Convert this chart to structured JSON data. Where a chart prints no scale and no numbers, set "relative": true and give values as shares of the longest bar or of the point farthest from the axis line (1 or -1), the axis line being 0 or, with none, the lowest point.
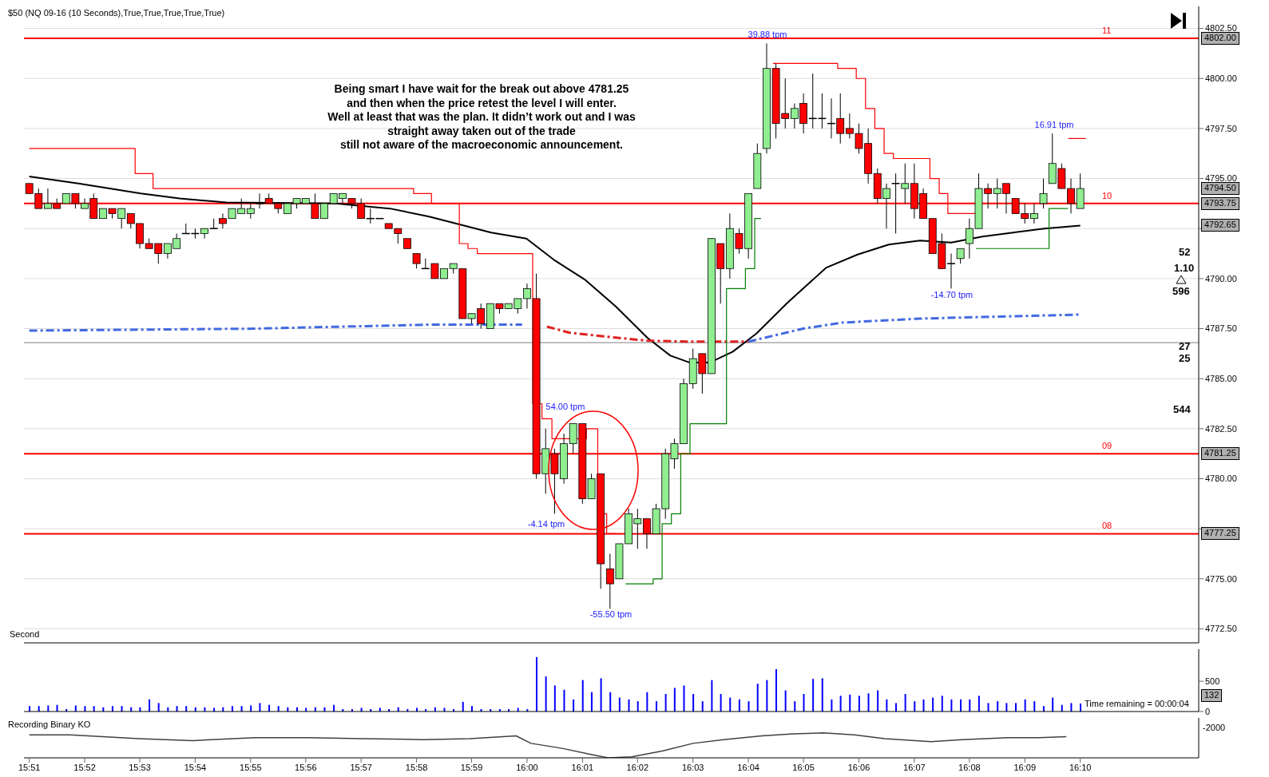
{
  "chart_data": [
    {
      "type": "candlestick",
      "title": "$50  (NQ 09-16 (10 Seconds),True,True,True,True,True)",
      "x": [
        15.85,
        15.8528,
        15.8556,
        15.8583,
        15.8611,
        15.8639,
        15.8667,
        15.8694,
        15.8722,
        15.875,
        15.8778,
        15.8806,
        15.8833,
        15.8861,
        15.8889,
        15.8917,
        15.8944,
        15.8972,
        15.9,
        15.9028,
        15.9056,
        15.9083,
        15.9111,
        15.9139,
        15.9167,
        15.9194,
        15.9222,
        15.925,
        15.9278,
        15.9306,
        15.9333,
        15.9361,
        15.9389,
        15.9417,
        15.9444,
        15.9472,
        15.95,
        15.9528,
        15.9556,
        15.9583,
        15.9611,
        15.9639,
        15.9667,
        15.9694,
        15.9722,
        15.975,
        15.9778,
        15.9806,
        15.9833,
        15.9861,
        15.9889,
        15.9917,
        15.9944,
        15.9972,
        16.0,
        16.0028,
        16.0056,
        16.0083,
        16.0111,
        16.0139,
        16.0167,
        16.0194,
        16.0222,
        16.025,
        16.0278,
        16.0306,
        16.0333,
        16.0361,
        16.0389,
        16.0417,
        16.0444,
        16.0472,
        16.05,
        16.0528,
        16.0556,
        16.0583,
        16.0611,
        16.0639,
        16.0667,
        16.0694,
        16.0722,
        16.075,
        16.0778,
        16.0806,
        16.0833,
        16.0861,
        16.0889,
        16.0917,
        16.0944,
        16.0972,
        16.1,
        16.1028,
        16.1056,
        16.1083,
        16.1111,
        16.1139,
        16.1167,
        16.1194,
        16.1222,
        16.125,
        16.1278,
        16.1306,
        16.1333,
        16.1361,
        16.1389,
        16.1417,
        16.1444,
        16.1472,
        16.15,
        16.1528,
        16.1556,
        16.1583,
        16.1611,
        16.1639,
        16.1667
      ],
      "ohlc": [
        [
          4794.75,
          4794.75,
          4794.25,
          4794.25
        ],
        [
          4794.25,
          4794.5,
          4793.5,
          4793.5
        ],
        [
          4793.5,
          4794.5,
          4793.5,
          4793.75
        ],
        [
          4793.75,
          4794,
          4793.5,
          4793.5
        ],
        [
          4793.75,
          4794.25,
          4793.75,
          4794.25
        ],
        [
          4794.25,
          4794.25,
          4793.5,
          4793.75
        ],
        [
          4793.5,
          4794,
          4793.5,
          4793.75
        ],
        [
          4794,
          4794.25,
          4793,
          4793
        ],
        [
          4793,
          4793.5,
          4793,
          4793.5
        ],
        [
          4793.5,
          4793.5,
          4793,
          4793.25
        ],
        [
          4793,
          4793.5,
          4792.5,
          4793.5
        ],
        [
          4793.25,
          4793.25,
          4792.5,
          4792.75
        ],
        [
          4792.75,
          4792.75,
          4791.5,
          4791.75
        ],
        [
          4791.75,
          4792,
          4791.5,
          4791.5
        ],
        [
          4791.75,
          4791.75,
          4790.75,
          4791.25
        ],
        [
          4791.25,
          4791.75,
          4791,
          4791.75
        ],
        [
          4791.5,
          4792.25,
          4791.5,
          4792
        ],
        [
          4792.25,
          4792.75,
          4792.25,
          4792.25
        ],
        [
          4792.25,
          4792.5,
          4792,
          4792.25
        ],
        [
          4792.25,
          4792.5,
          4792,
          4792.5
        ],
        [
          4792.5,
          4793,
          4792.5,
          4792.5
        ],
        [
          4793,
          4793.25,
          4792.5,
          4792.75
        ],
        [
          4793,
          4793.5,
          4793,
          4793.5
        ],
        [
          4793.25,
          4794,
          4793.25,
          4793.5
        ],
        [
          4793.25,
          4793.75,
          4793,
          4793.5
        ],
        [
          4793.75,
          4794.25,
          4793.5,
          4793.75
        ],
        [
          4794,
          4794.25,
          4793.75,
          4793.75
        ],
        [
          4793.75,
          4793.75,
          4793.25,
          4793.5
        ],
        [
          4793.25,
          4793.75,
          4793.25,
          4793.75
        ],
        [
          4793.75,
          4794,
          4793.5,
          4794
        ],
        [
          4793.75,
          4794,
          4793.75,
          4794
        ],
        [
          4793.75,
          4794.25,
          4793,
          4793
        ],
        [
          4793,
          4793.75,
          4793,
          4793.75
        ],
        [
          4793.75,
          4794.25,
          4793.75,
          4794.25
        ],
        [
          4794,
          4794.25,
          4793.75,
          4794.25
        ],
        [
          4794,
          4794,
          4793.5,
          4793.75
        ],
        [
          4793.75,
          4794,
          4793,
          4793
        ],
        [
          4793,
          4793.5,
          4792.75,
          4793
        ],
        [
          4793,
          4793,
          4793,
          4793
        ],
        [
          4792.75,
          4792.75,
          4792.5,
          4792.5
        ],
        [
          4792.5,
          4792.5,
          4791.75,
          4792.25
        ],
        [
          4792,
          4792,
          4791.5,
          4791.5
        ],
        [
          4791.25,
          4791.25,
          4790.5,
          4790.75
        ],
        [
          4790.5,
          4791,
          4790.5,
          4790.5
        ],
        [
          4790.75,
          4790.75,
          4790,
          4790
        ],
        [
          4790,
          4790.5,
          4790,
          4790.5
        ],
        [
          4790.5,
          4790.75,
          4790.25,
          4790.75
        ],
        [
          4790.5,
          4790.5,
          4788,
          4788
        ],
        [
          4788,
          4788.25,
          4787.75,
          4788.25
        ],
        [
          4788.5,
          4788.75,
          4787.5,
          4787.75
        ],
        [
          4787.5,
          4788.75,
          4787.5,
          4788.75
        ],
        [
          4788.75,
          4788.75,
          4788.25,
          4788.5
        ],
        [
          4788.5,
          4788.75,
          4788.5,
          4788.75
        ],
        [
          4788.5,
          4789,
          4788.25,
          4789
        ],
        [
          4789,
          4789.75,
          4788.5,
          4789.5
        ],
        [
          4789,
          4790.25,
          4780,
          4780.25
        ],
        [
          4780.25,
          4782.5,
          4779.25,
          4781.5
        ],
        [
          4781.25,
          4781.5,
          4778.25,
          4780.25
        ],
        [
          4780,
          4782.25,
          4779.75,
          4781.75
        ],
        [
          4781.75,
          4782.75,
          4781.25,
          4782.75
        ],
        [
          4782.75,
          4782.75,
          4778.75,
          4779
        ],
        [
          4779,
          4780.25,
          4779,
          4780
        ],
        [
          4780.25,
          4780.25,
          4774.5,
          4775.75
        ],
        [
          4775.5,
          4776.25,
          4773.5,
          4774.75
        ],
        [
          4775,
          4776.75,
          4775,
          4776.75
        ],
        [
          4776.75,
          4778.5,
          4776.75,
          4778.25
        ],
        [
          4777.75,
          4778.5,
          4776.5,
          4778
        ],
        [
          4778,
          4778,
          4776.5,
          4777.25
        ],
        [
          4777.25,
          4778.75,
          4777.25,
          4778.5
        ],
        [
          4778.5,
          4781.5,
          4778,
          4781.25
        ],
        [
          4781,
          4782,
          4780.5,
          4781.75
        ],
        [
          4781.75,
          4785,
          4781.75,
          4784.75
        ],
        [
          4784.75,
          4786.5,
          4784.5,
          4786
        ],
        [
          4786.25,
          4786.25,
          4784.25,
          4785.25
        ],
        [
          4785.25,
          4792,
          4785.25,
          4792
        ],
        [
          4791.75,
          4791.75,
          4788.75,
          4790.5
        ],
        [
          4790.5,
          4793.25,
          4790,
          4792.5
        ],
        [
          4792.25,
          4792.5,
          4791.25,
          4791.5
        ],
        [
          4791.5,
          4794.25,
          4791,
          4794.25
        ],
        [
          4794.5,
          4796.75,
          4794.5,
          4796.25
        ],
        [
          4796.5,
          4801.75,
          4796.25,
          4800.5
        ],
        [
          4800.5,
          4800.75,
          4797,
          4797.75
        ],
        [
          4798.25,
          4800,
          4797.5,
          4798
        ],
        [
          4798,
          4798.75,
          4797.5,
          4798.5
        ],
        [
          4798.75,
          4799.25,
          4797.25,
          4797.75
        ],
        [
          4798,
          4800.25,
          4797.5,
          4798
        ],
        [
          4798,
          4799.25,
          4797.5,
          4798
        ],
        [
          4797.75,
          4799,
          4797,
          4797.75
        ],
        [
          4798,
          4799.25,
          4796.75,
          4797.25
        ],
        [
          4797.5,
          4798.25,
          4797,
          4797.25
        ],
        [
          4797.25,
          4797.75,
          4796.25,
          4796.5
        ],
        [
          4796.75,
          4797.5,
          4794.75,
          4795.25
        ],
        [
          4795.25,
          4795.5,
          4793.75,
          4794
        ],
        [
          4794,
          4794.75,
          4792.5,
          4794.5
        ],
        [
          4794.75,
          4795.25,
          4792.25,
          4794.75
        ],
        [
          4794.5,
          4795.75,
          4793.75,
          4794.75
        ],
        [
          4794.75,
          4795.75,
          4793,
          4793.5
        ],
        [
          4794.25,
          4794.5,
          4793,
          4793
        ],
        [
          4793,
          4793,
          4791.25,
          4791.25
        ],
        [
          4791.75,
          4792.25,
          4790.5,
          4790.5
        ],
        [
          4790.75,
          4791.25,
          4789.5,
          4790.75
        ],
        [
          4791,
          4791.5,
          4790.75,
          4791.5
        ],
        [
          4791.75,
          4793,
          4791,
          4792.5
        ],
        [
          4792.5,
          4795.25,
          4792.5,
          4794.5
        ],
        [
          4794.5,
          4794.75,
          4793.5,
          4794.25
        ],
        [
          4794.25,
          4795,
          4793.5,
          4794.5
        ],
        [
          4794.75,
          4794.75,
          4793.25,
          4794.25
        ],
        [
          4794,
          4794,
          4793.25,
          4793.25
        ],
        [
          4793.25,
          4793.75,
          4792.75,
          4793
        ],
        [
          4793,
          4793.75,
          4792.75,
          4793.25
        ],
        [
          4793.75,
          4795,
          4793.5,
          4794.25
        ],
        [
          4794.75,
          4797.25,
          4794.75,
          4795.75
        ],
        [
          4795.5,
          4795.75,
          4794.5,
          4794.5
        ],
        [
          4794.5,
          4795,
          4793.25,
          4793.75
        ],
        [
          4793.5,
          4795.25,
          4793.5,
          4794.5
        ]
      ],
      "colors": [
        "#ff0000",
        "#ff0000",
        "#90ee90",
        "#ff0000",
        "#90ee90",
        "#ff0000",
        "#90ee90",
        "#ff0000",
        "#90ee90",
        "#ff0000",
        "#90ee90",
        "#ff0000",
        "#ff0000",
        "#ff0000",
        "#ff0000",
        "#90ee90",
        "#90ee90",
        "#000000",
        "#000000",
        "#90ee90",
        "#000000",
        "#ff0000",
        "#90ee90",
        "#90ee90",
        "#90ee90",
        "#000000",
        "#ff0000",
        "#ff0000",
        "#90ee90",
        "#90ee90",
        "#90ee90",
        "#ff0000",
        "#90ee90",
        "#90ee90",
        "#90ee90",
        "#ff0000",
        "#ff0000",
        "#000000",
        "#000000",
        "#ff0000",
        "#ff0000",
        "#ff0000",
        "#ff0000",
        "#000000",
        "#ff0000",
        "#90ee90",
        "#90ee90",
        "#ff0000",
        "#90ee90",
        "#ff0000",
        "#90ee90",
        "#ff0000",
        "#90ee90",
        "#90ee90",
        "#90ee90",
        "#ff0000",
        "#90ee90",
        "#ff0000",
        "#90ee90",
        "#90ee90",
        "#ff0000",
        "#90ee90",
        "#ff0000",
        "#ff0000",
        "#90ee90",
        "#90ee90",
        "#90ee90",
        "#ff0000",
        "#90ee90",
        "#90ee90",
        "#90ee90",
        "#90ee90",
        "#90ee90",
        "#ff0000",
        "#90ee90",
        "#ff0000",
        "#90ee90",
        "#ff0000",
        "#90ee90",
        "#90ee90",
        "#90ee90",
        "#ff0000",
        "#ff0000",
        "#90ee90",
        "#ff0000",
        "#000000",
        "#000000",
        "#000000",
        "#ff0000",
        "#ff0000",
        "#ff0000",
        "#ff0000",
        "#ff0000",
        "#90ee90",
        "#000000",
        "#90ee90",
        "#ff0000",
        "#ff0000",
        "#ff0000",
        "#ff0000",
        "#000000",
        "#90ee90",
        "#90ee90",
        "#90ee90",
        "#ff0000",
        "#90ee90",
        "#ff0000",
        "#ff0000",
        "#ff0000",
        "#90ee90",
        "#90ee90",
        "#90ee90",
        "#ff0000",
        "#ff0000",
        "#90ee90"
      ],
      "series": [
        {
          "type": "line",
          "color": "#000000",
          "x": [
            15.85,
            15.8648,
            15.8836,
            15.8953,
            15.9094,
            15.9423,
            15.9587,
            15.9705,
            15.9787,
            15.9892,
            15.9998,
            16.008,
            16.0174,
            16.0268,
            16.0362,
            16.0432,
            16.0491,
            16.055,
            16.062,
            16.0691,
            16.0785,
            16.0902,
            16.0996,
            16.109,
            16.1184,
            16.1278,
            16.1372,
            16.1465,
            16.1559,
            16.1667
          ],
          "values": [
            4795.1,
            4794.75,
            4794.25,
            4794.0,
            4793.8,
            4793.75,
            4793.5,
            4793.1,
            4792.75,
            4792.3,
            4792.0,
            4790.95,
            4789.95,
            4788.6,
            4787.05,
            4786.15,
            4785.8,
            4785.8,
            4786.35,
            4787.25,
            4788.8,
            4790.55,
            4791.2,
            4791.7,
            4791.9,
            4791.8,
            4792.1,
            4792.3,
            4792.5,
            4792.65
          ]
        },
        {
          "type": "line",
          "color": "#4169e1",
          "line_style": "dashed",
          "x": [
            15.85,
            15.9188,
            15.9705,
            15.9985
          ],
          "values": [
            4787.4,
            4787.5,
            4787.7,
            4787.7
          ]
        },
        {
          "type": "line",
          "color": "#e02020",
          "line_style": "dashed",
          "x": [
            16.006,
            16.0127,
            16.0268,
            16.0362,
            16.0479,
            16.0667
          ],
          "values": [
            4787.6,
            4787.3,
            4787.05,
            4786.9,
            4786.85,
            4786.85
          ]
        },
        {
          "type": "line",
          "color": "#4169e1",
          "line_style": "dashed",
          "x": [
            16.0667,
            16.0832,
            16.0949,
            16.1184,
            16.1419,
            16.1667
          ],
          "values": [
            4786.85,
            4787.5,
            4787.8,
            4788.0,
            4788.1,
            4788.2
          ]
        },
        {
          "type": "step",
          "color": "#ff0000",
          "x": [
            15.85,
            15.8819,
            15.8873,
            15.9658,
            15.9712,
            15.9796,
            15.9822,
            15.985,
            16.0017,
            16.0045,
            16.0075,
            16.0179,
            16.0213,
            16.024,
            16.0268
          ],
          "values": [
            4796.5,
            4795.25,
            4794.5,
            4794.25,
            4793.75,
            4791.75,
            4791.5,
            4791.25,
            4783.75,
            4783.0,
            4782.0,
            4782.5,
            4778.25,
            4777.25,
            4777.25
          ]
        },
        {
          "type": "step",
          "color": "#ff0000",
          "x": [
            16.0741,
            16.0936,
            16.0992,
            16.102,
            16.1048,
            16.1076,
            16.1104,
            16.1214,
            16.1242,
            16.1268,
            16.1353
          ],
          "values": [
            4800.75,
            4800.5,
            4800.0,
            4798.5,
            4797.5,
            4796.25,
            4796.0,
            4795.0,
            4794.25,
            4793.25,
            4793.25
          ]
        },
        {
          "type": "step",
          "color": "#ff0000",
          "x": [
            16.1631,
            16.1684
          ],
          "values": [
            4797.0,
            4797.0
          ]
        },
        {
          "type": "step",
          "color": "#008000",
          "x": [
            16.0297,
            16.038,
            16.0407,
            16.0435,
            16.0463,
            16.0491,
            16.0601,
            16.0658,
            16.0686,
            16.0705
          ],
          "values": [
            4774.75,
            4775.0,
            4777.75,
            4778.25,
            4781.25,
            4782.75,
            4789.5,
            4790.5,
            4793.0,
            4793.0
          ]
        },
        {
          "type": "step",
          "color": "#008000",
          "x": [
            16.1353,
            16.1573,
            16.163
          ],
          "values": [
            4791.5,
            4793.5,
            4793.5
          ]
        }
      ],
      "xlim": [
        15.8484,
        16.2024
      ],
      "xticks": [
        {
          "value": 15.85,
          "label": null
        },
        {
          "value": 15.8667,
          "label": null
        },
        {
          "value": 15.8833,
          "label": null
        },
        {
          "value": 15.9,
          "label": null
        },
        {
          "value": 15.9167,
          "label": null
        },
        {
          "value": 15.9333,
          "label": null
        },
        {
          "value": 15.95,
          "label": null
        },
        {
          "value": 15.9667,
          "label": null
        },
        {
          "value": 15.9833,
          "label": null
        },
        {
          "value": 16.0,
          "label": null
        },
        {
          "value": 16.0167,
          "label": null
        },
        {
          "value": 16.0333,
          "label": null
        },
        {
          "value": 16.05,
          "label": null
        },
        {
          "value": 16.0667,
          "label": null
        },
        {
          "value": 16.0833,
          "label": null
        },
        {
          "value": 16.1,
          "label": null
        },
        {
          "value": 16.1167,
          "label": null
        },
        {
          "value": 16.1333,
          "label": null
        },
        {
          "value": 16.15,
          "label": null
        },
        {
          "value": 16.1667,
          "label": null
        }
      ],
      "ylim": [
        4771.8,
        4803.6
      ],
      "yticks": [
        {
          "value": 4772.5,
          "label": "4772.50"
        },
        {
          "value": 4775,
          "label": "4775.00"
        },
        {
          "value": 4777.5,
          "label": null
        },
        {
          "value": 4780,
          "label": "4780.00"
        },
        {
          "value": 4782.5,
          "label": "4782.50"
        },
        {
          "value": 4785,
          "label": "4785.00"
        },
        {
          "value": 4787.5,
          "label": "4787.50"
        },
        {
          "value": 4790,
          "label": "4790.00"
        },
        {
          "value": 4792.5,
          "label": null
        },
        {
          "value": 4795,
          "label": "4795.00"
        },
        {
          "value": 4797.5,
          "label": "4797.50"
        },
        {
          "value": 4800,
          "label": "4800.00"
        },
        {
          "value": 4802.5,
          "label": "4802.50"
        }
      ],
      "grid": true,
      "tick_labels": "y",
      "ref_lines": [
        {
          "axis": "y",
          "value": 4802,
          "color": "#ff0000"
        },
        {
          "axis": "y",
          "value": 4793.75,
          "color": "#ff0000"
        },
        {
          "axis": "y",
          "value": 4781.25,
          "color": "#ff0000"
        },
        {
          "axis": "y",
          "value": 4777.25,
          "color": "#ff0000"
        },
        {
          "axis": "y",
          "value": 4786.8,
          "color": "#808080"
        }
      ],
      "annotations": [
        "Being smart I have wait for the break out above 4781.25\nand then when the price retest the level I will enter.\nWell at least that was the plan. It didn’t work out and I was\nstraight away taken out of the trade\nstill not aware of the macroeconomic announcement.",
        "39.88 tpm",
        "54.00 tpm",
        "-4.14 tpm",
        "-55.50 tpm",
        "16.91 tpm",
        "-14.70 tpm",
        "4802.00",
        "4794.50",
        "4793.75",
        "4792.65",
        "4781.25",
        "4777.25",
        "11",
        "10",
        "09",
        "08",
        "Second",
        "52",
        "1.10",
        "596",
        "27",
        "25",
        "544"
      ]
    },
    {
      "type": "bar",
      "color": "#0000ff",
      "x": [
        15.85,
        15.8528,
        15.8556,
        15.8583,
        15.8611,
        15.8639,
        15.8667,
        15.8694,
        15.8722,
        15.875,
        15.8778,
        15.8806,
        15.8833,
        15.8861,
        15.8889,
        15.8917,
        15.8944,
        15.8972,
        15.9,
        15.9028,
        15.9056,
        15.9083,
        15.9111,
        15.9139,
        15.9167,
        15.9194,
        15.9222,
        15.925,
        15.9278,
        15.9306,
        15.9333,
        15.9361,
        15.9389,
        15.9417,
        15.9444,
        15.9472,
        15.95,
        15.9528,
        15.9556,
        15.9583,
        15.9611,
        15.9639,
        15.9667,
        15.9694,
        15.9722,
        15.975,
        15.9778,
        15.9806,
        15.9833,
        15.9861,
        15.9889,
        15.9917,
        15.9944,
        15.9972,
        16.0,
        16.0028,
        16.0056,
        16.0083,
        16.0111,
        16.0139,
        16.0167,
        16.0194,
        16.0222,
        16.025,
        16.0278,
        16.0306,
        16.0333,
        16.0361,
        16.0389,
        16.0417,
        16.0444,
        16.0472,
        16.05,
        16.0528,
        16.0556,
        16.0583,
        16.0611,
        16.0639,
        16.0667,
        16.0694,
        16.0722,
        16.075,
        16.0778,
        16.0806,
        16.0833,
        16.0861,
        16.0889,
        16.0917,
        16.0944,
        16.0972,
        16.1,
        16.1028,
        16.1056,
        16.1083,
        16.1111,
        16.1139,
        16.1167,
        16.1194,
        16.1222,
        16.125,
        16.1278,
        16.1306,
        16.1333,
        16.1361,
        16.1389,
        16.1417,
        16.1444,
        16.1472,
        16.15,
        16.1528,
        16.1556,
        16.1583,
        16.1611,
        16.1639,
        16.1667
      ],
      "values": [
        90,
        90,
        100,
        110,
        40,
        100,
        90,
        90,
        70,
        90,
        90,
        70,
        70,
        200,
        140,
        70,
        90,
        90,
        70,
        70,
        60,
        70,
        90,
        90,
        100,
        140,
        110,
        90,
        70,
        70,
        60,
        70,
        70,
        110,
        40,
        40,
        60,
        40,
        60,
        40,
        70,
        40,
        60,
        40,
        70,
        60,
        40,
        160,
        90,
        40,
        40,
        40,
        40,
        60,
        40,
        900,
        580,
        430,
        360,
        200,
        520,
        320,
        550,
        320,
        230,
        200,
        170,
        320,
        170,
        290,
        390,
        430,
        290,
        170,
        520,
        290,
        230,
        200,
        170,
        460,
        520,
        700,
        350,
        170,
        290,
        540,
        550,
        200,
        260,
        280,
        260,
        300,
        350,
        200,
        140,
        290,
        170,
        200,
        230,
        260,
        200,
        200,
        200,
        260,
        140,
        170,
        140,
        140,
        200,
        170,
        90,
        230,
        110,
        140,
        132
      ],
      "xlim": [
        15.8484,
        16.2024
      ],
      "ylim": [
        0,
        1030
      ],
      "yticks": [
        0,
        500
      ],
      "tick_labels": "y",
      "annotations": [
        "Time remaining = 00:00:04",
        "132"
      ]
    },
    {
      "type": "line",
      "title": "Recording Binary KO",
      "relative": true,
      "color": "#404040",
      "x": [
        15.85,
        15.8623,
        15.8831,
        15.8993,
        15.9179,
        15.934,
        15.9503,
        15.9688,
        15.9827,
        15.9967,
        16.0012,
        16.0106,
        16.0198,
        16.0244,
        16.0315,
        16.0407,
        16.05,
        16.0592,
        16.0707,
        16.0801,
        16.0893,
        16.0987,
        16.1078,
        16.1217,
        16.1311,
        16.1449,
        16.1543,
        16.1625
      ],
      "values": [
        0.92,
        0.92,
        0.77,
        0.69,
        0.81,
        0.81,
        0.77,
        0.73,
        0.77,
        0.88,
        0.58,
        0.38,
        0.12,
        0,
        0.04,
        0.27,
        0.58,
        0.73,
        0.88,
        0.96,
        1,
        0.92,
        0.77,
        0.65,
        0.73,
        0.81,
        0.81,
        0.85
      ],
      "xlim": [
        15.8484,
        16.2024
      ],
      "xticks": [
        {
          "value": 15.85,
          "label": "15:51"
        },
        {
          "value": 15.8667,
          "label": "15:52"
        },
        {
          "value": 15.8833,
          "label": "15:53"
        },
        {
          "value": 15.9,
          "label": "15:54"
        },
        {
          "value": 15.9167,
          "label": "15:55"
        },
        {
          "value": 15.9333,
          "label": "15:56"
        },
        {
          "value": 15.95,
          "label": "15:57"
        },
        {
          "value": 15.9667,
          "label": "15:58"
        },
        {
          "value": 15.9833,
          "label": "15:59"
        },
        {
          "value": 16.0,
          "label": "16:00"
        },
        {
          "value": 16.0167,
          "label": "16:01"
        },
        {
          "value": 16.0333,
          "label": "16:02"
        },
        {
          "value": 16.05,
          "label": "16:03"
        },
        {
          "value": 16.0667,
          "label": "16:04"
        },
        {
          "value": 16.0833,
          "label": "16:05"
        },
        {
          "value": 16.1,
          "label": "16:06"
        },
        {
          "value": 16.1167,
          "label": "16:07"
        },
        {
          "value": 16.1333,
          "label": "16:08"
        },
        {
          "value": 16.15,
          "label": "16:09"
        },
        {
          "value": 16.1667,
          "label": "16:10"
        }
      ],
      "tick_labels": "x",
      "annotations": [
        "-2000"
      ]
    }
  ]
}
